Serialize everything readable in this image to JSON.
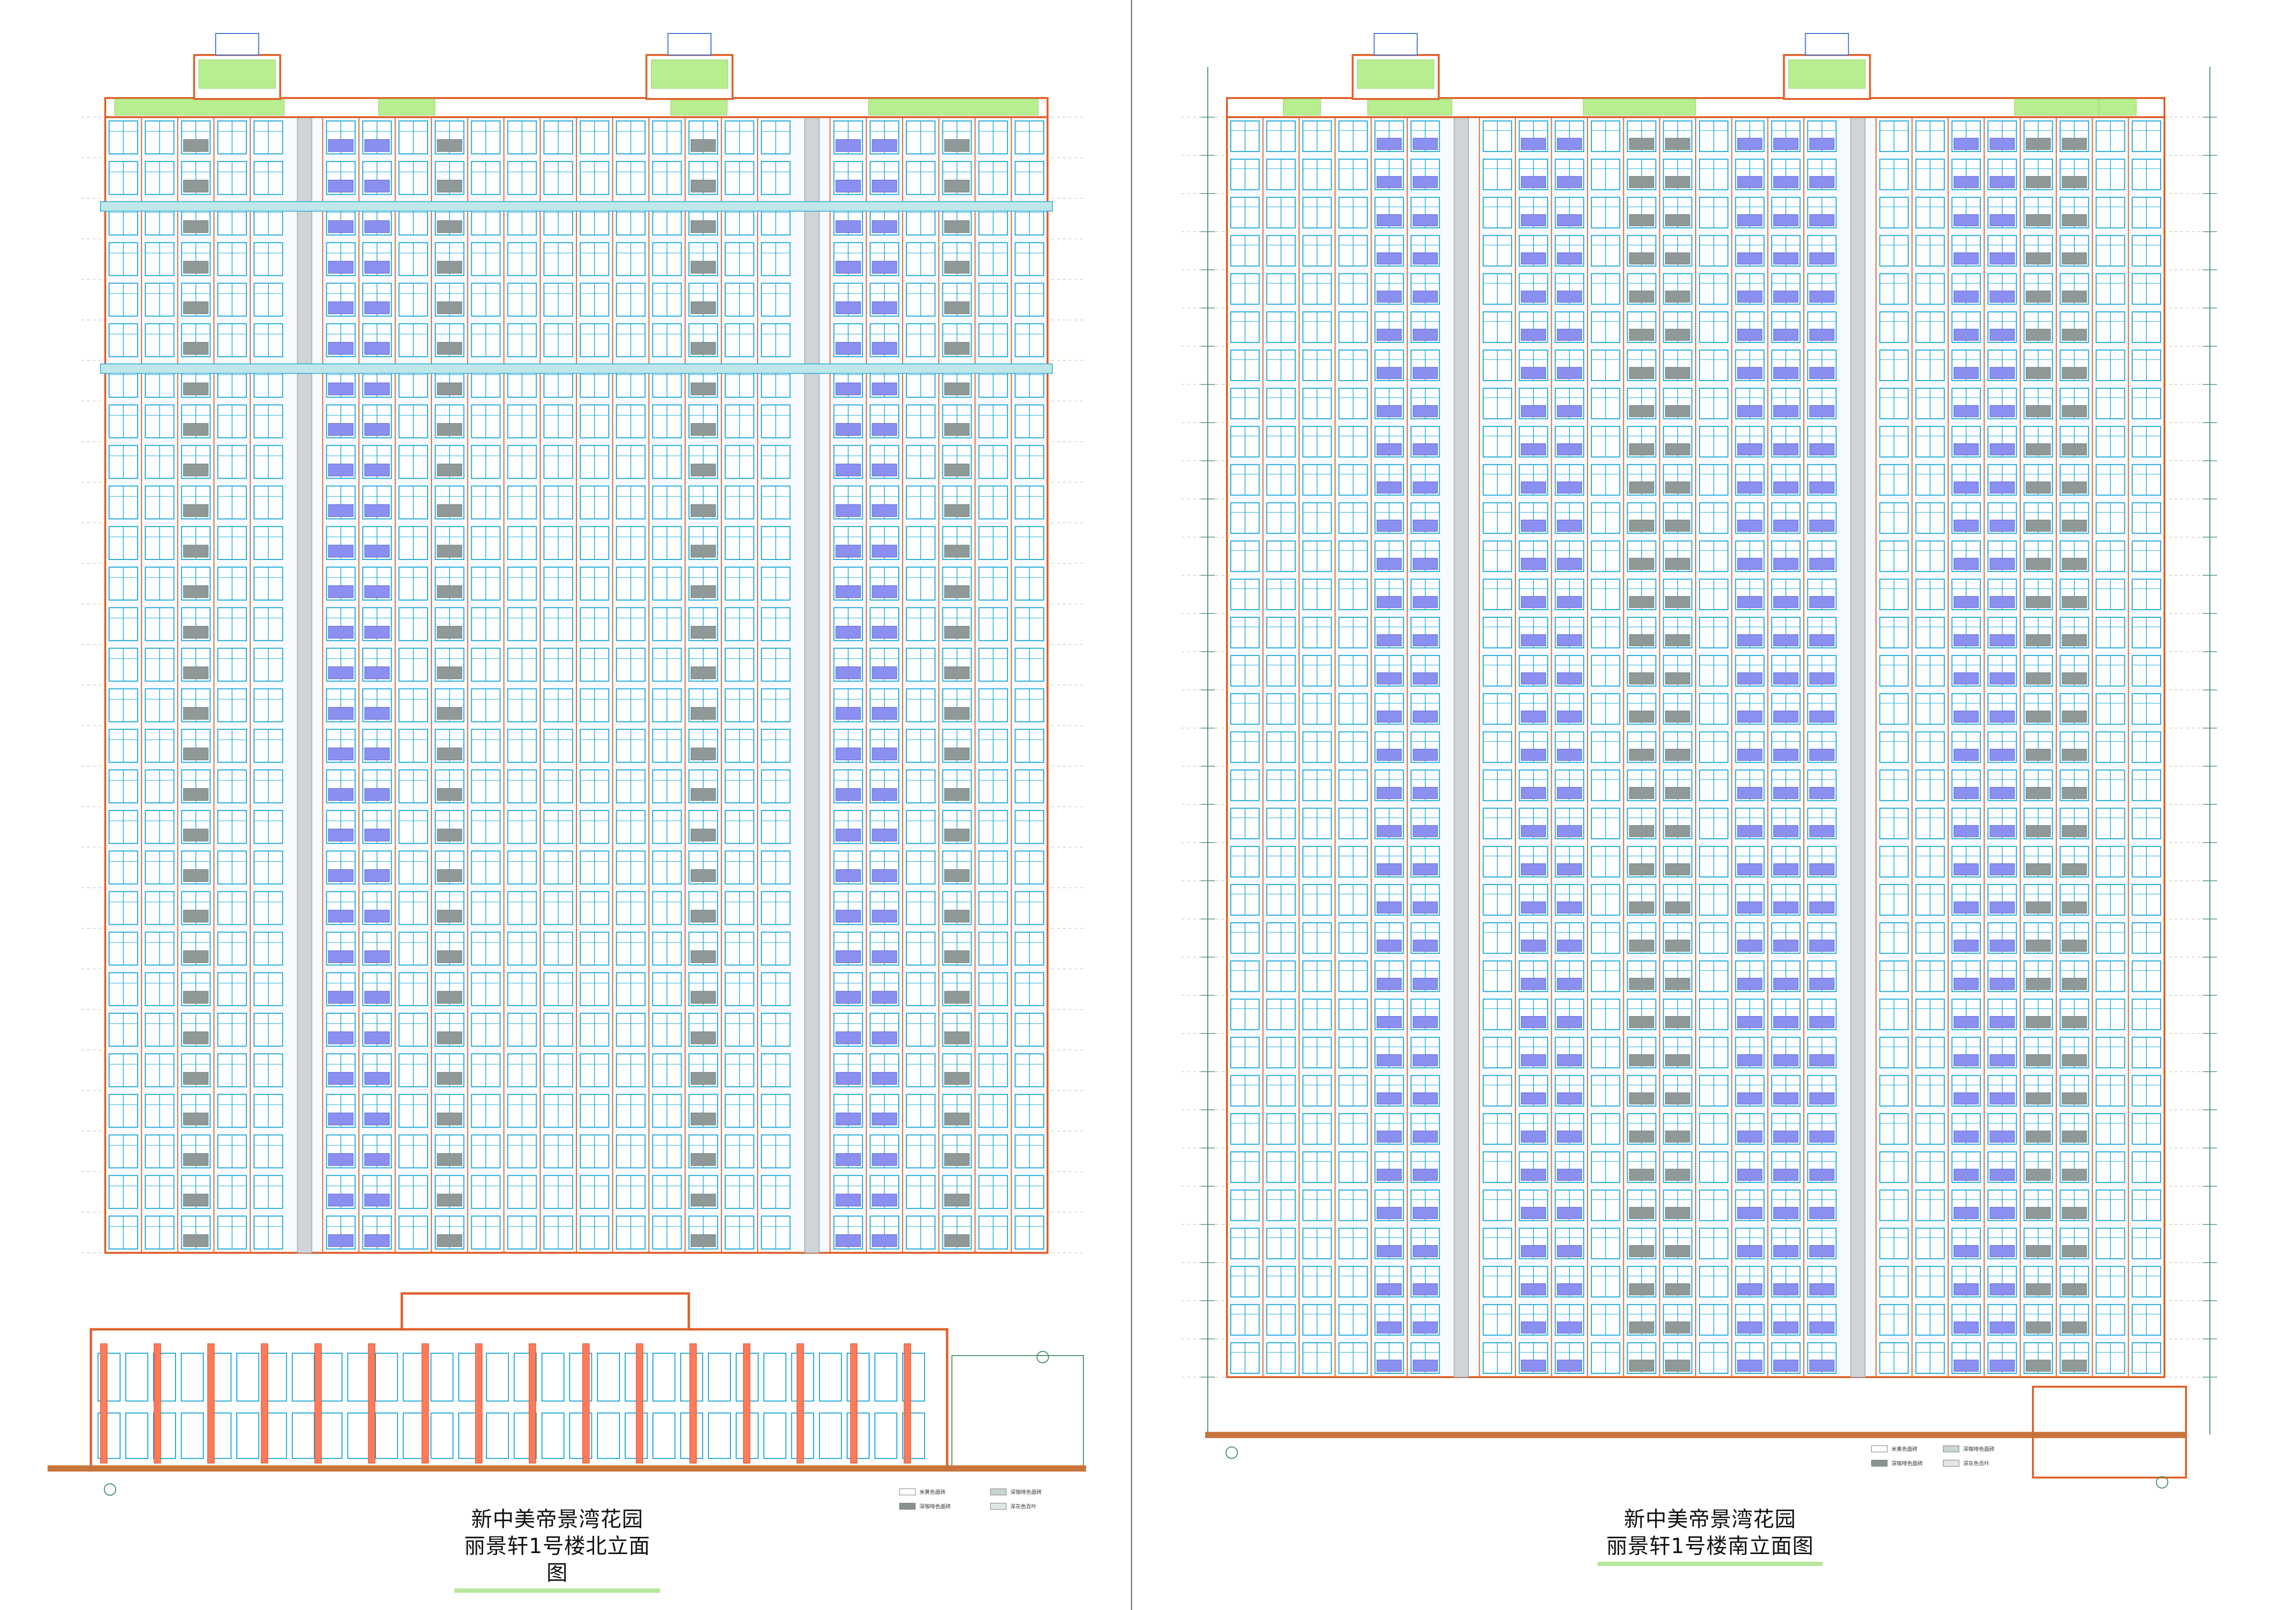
{
  "sheets": [
    {
      "id": "north",
      "project_title": "新中美帝景湾花园",
      "drawing_title": "丽景轩1号楼北立面图",
      "legend": [
        {
          "label": "米黄色面砖",
          "color": "#ffffff"
        },
        {
          "label": "深咖啡色面砖",
          "color": "#86948c"
        },
        {
          "label": "深咖啡色面砖",
          "color": "#c8d6ce"
        },
        {
          "label": "深灰色百叶",
          "color": "#dfe7e2"
        }
      ]
    },
    {
      "id": "south",
      "project_title": "新中美帝景湾花园",
      "drawing_title": "丽景轩1号楼南立面图",
      "legend": [
        {
          "label": "米黄色面砖",
          "color": "#ffffff"
        },
        {
          "label": "深咖啡色面砖",
          "color": "#c8d6ce"
        },
        {
          "label": "深咖啡色面砖",
          "color": "#86948c"
        },
        {
          "label": "深灰色百叶",
          "color": "#dfe7e2"
        }
      ]
    }
  ],
  "palette": {
    "outline": "#e0612a",
    "window": "#19a6d8",
    "glazing_blue": "#8a8ff0",
    "panel_grey": "#8f9a98",
    "roof_green": "#b6ee90",
    "band": "#bfe6e8",
    "ground": "#c8743c",
    "core": "#cfd4d6"
  }
}
